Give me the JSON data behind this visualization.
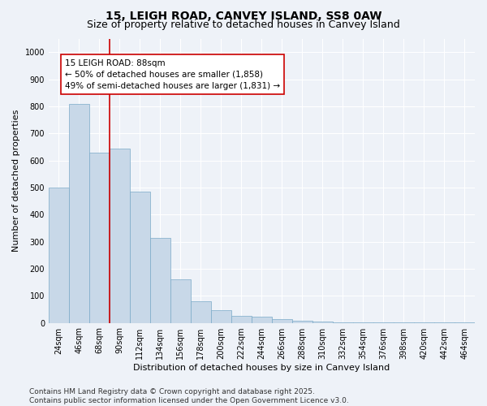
{
  "title1": "15, LEIGH ROAD, CANVEY ISLAND, SS8 0AW",
  "title2": "Size of property relative to detached houses in Canvey Island",
  "xlabel": "Distribution of detached houses by size in Canvey Island",
  "ylabel": "Number of detached properties",
  "bar_labels": [
    "24sqm",
    "46sqm",
    "68sqm",
    "90sqm",
    "112sqm",
    "134sqm",
    "156sqm",
    "178sqm",
    "200sqm",
    "222sqm",
    "244sqm",
    "266sqm",
    "288sqm",
    "310sqm",
    "332sqm",
    "354sqm",
    "376sqm",
    "398sqm",
    "420sqm",
    "442sqm",
    "464sqm"
  ],
  "bar_values": [
    500,
    810,
    630,
    645,
    485,
    315,
    160,
    80,
    47,
    25,
    22,
    13,
    8,
    5,
    3,
    2,
    2,
    1,
    1,
    1,
    1
  ],
  "bar_color": "#c8d8e8",
  "bar_edge_color": "#7aaac8",
  "vline_color": "#cc0000",
  "annotation_text": "15 LEIGH ROAD: 88sqm\n← 50% of detached houses are smaller (1,858)\n49% of semi-detached houses are larger (1,831) →",
  "annotation_box_color": "#ffffff",
  "annotation_box_edgecolor": "#cc0000",
  "ylim": [
    0,
    1050
  ],
  "yticks": [
    0,
    100,
    200,
    300,
    400,
    500,
    600,
    700,
    800,
    900,
    1000
  ],
  "bg_color": "#eef2f8",
  "footnote": "Contains HM Land Registry data © Crown copyright and database right 2025.\nContains public sector information licensed under the Open Government Licence v3.0.",
  "title_fontsize": 10,
  "subtitle_fontsize": 9,
  "axis_label_fontsize": 8,
  "tick_fontsize": 7,
  "annotation_fontsize": 7.5,
  "footnote_fontsize": 6.5
}
